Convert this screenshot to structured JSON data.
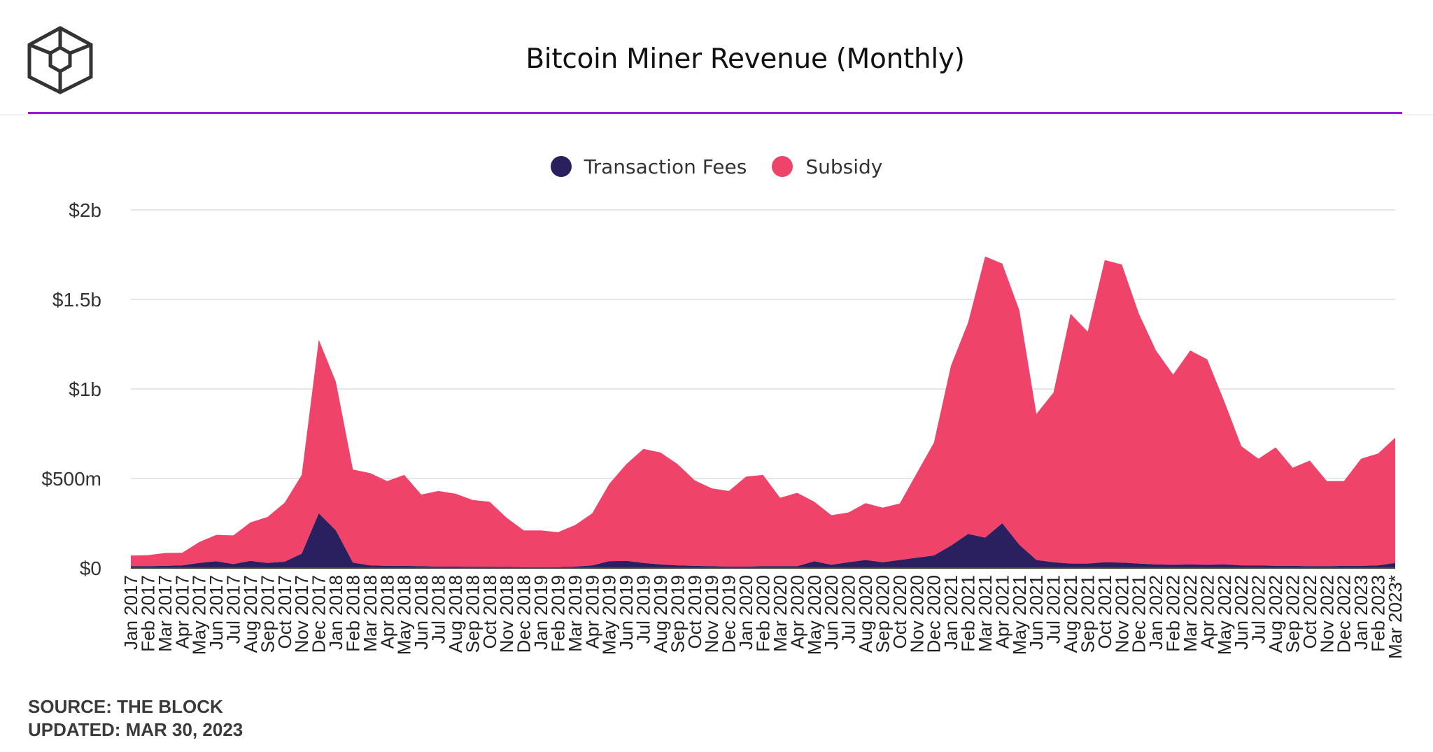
{
  "header": {
    "logo_icon": "cube-logo-icon",
    "title": "Bitcoin Miner Revenue (Monthly)",
    "accent_color": "#9b1bd1"
  },
  "legend": [
    {
      "name": "Transaction Fees",
      "color": "#2a2060"
    },
    {
      "name": "Subsidy",
      "color": "#f0436a"
    }
  ],
  "footer": {
    "source": "SOURCE: THE BLOCK",
    "updated": "UPDATED: MAR 30, 2023"
  },
  "chart_data": {
    "type": "area",
    "title": "Bitcoin Miner Revenue (Monthly)",
    "stacked": true,
    "legend_position": "top-center",
    "grid": true,
    "ylim": [
      0,
      2000000000
    ],
    "y_ticks": [
      {
        "value": 0,
        "label": "$0"
      },
      {
        "value": 500000000,
        "label": "$500m"
      },
      {
        "value": 1000000000,
        "label": "$1b"
      },
      {
        "value": 1500000000,
        "label": "$1.5b"
      },
      {
        "value": 2000000000,
        "label": "$2b"
      }
    ],
    "categories": [
      "Jan 2017",
      "Feb 2017",
      "Mar 2017",
      "Apr 2017",
      "May 2017",
      "Jun 2017",
      "Jul 2017",
      "Aug 2017",
      "Sep 2017",
      "Oct 2017",
      "Nov 2017",
      "Dec 2017",
      "Jan 2018",
      "Feb 2018",
      "Mar 2018",
      "Apr 2018",
      "May 2018",
      "Jun 2018",
      "Jul 2018",
      "Aug 2018",
      "Sep 2018",
      "Oct 2018",
      "Nov 2018",
      "Dec 2018",
      "Jan 2019",
      "Feb 2019",
      "Mar 2019",
      "Apr 2019",
      "May 2019",
      "Jun 2019",
      "Jul 2019",
      "Aug 2019",
      "Sep 2019",
      "Oct 2019",
      "Nov 2019",
      "Dec 2019",
      "Jan 2020",
      "Feb 2020",
      "Mar 2020",
      "Apr 2020",
      "May 2020",
      "Jun 2020",
      "Jul 2020",
      "Aug 2020",
      "Sep 2020",
      "Oct 2020",
      "Nov 2020",
      "Dec 2020",
      "Jan 2021",
      "Feb 2021",
      "Mar 2021",
      "Apr 2021",
      "May 2021",
      "Jun 2021",
      "Jul 2021",
      "Aug 2021",
      "Sep 2021",
      "Oct 2021",
      "Nov 2021",
      "Dec 2021",
      "Jan 2022",
      "Feb 2022",
      "Mar 2022",
      "Apr 2022",
      "May 2022",
      "Jun 2022",
      "Jul 2022",
      "Aug 2022",
      "Sep 2022",
      "Oct 2022",
      "Nov 2022",
      "Dec 2022",
      "Jan 2023",
      "Feb 2023",
      "Mar 2023*"
    ],
    "series": [
      {
        "name": "Transaction Fees",
        "color": "#2a2060",
        "values": [
          10000000,
          10000000,
          12000000,
          15000000,
          28000000,
          38000000,
          22000000,
          40000000,
          28000000,
          35000000,
          80000000,
          305000000,
          210000000,
          30000000,
          15000000,
          12000000,
          12000000,
          10000000,
          8000000,
          8000000,
          7000000,
          7000000,
          6000000,
          5000000,
          5000000,
          5000000,
          8000000,
          15000000,
          38000000,
          40000000,
          28000000,
          20000000,
          15000000,
          12000000,
          10000000,
          8000000,
          8000000,
          10000000,
          10000000,
          10000000,
          38000000,
          18000000,
          32000000,
          45000000,
          32000000,
          45000000,
          58000000,
          70000000,
          125000000,
          190000000,
          170000000,
          250000000,
          130000000,
          45000000,
          32000000,
          25000000,
          25000000,
          32000000,
          30000000,
          25000000,
          20000000,
          18000000,
          20000000,
          18000000,
          20000000,
          15000000,
          15000000,
          12000000,
          12000000,
          10000000,
          10000000,
          12000000,
          12000000,
          15000000,
          28000000
        ]
      },
      {
        "name": "Subsidy",
        "color": "#f0436a",
        "values": [
          60000000,
          62000000,
          72000000,
          70000000,
          117000000,
          147000000,
          160000000,
          215000000,
          257000000,
          330000000,
          440000000,
          970000000,
          830000000,
          520000000,
          515000000,
          473000000,
          508000000,
          400000000,
          422000000,
          407000000,
          373000000,
          363000000,
          274000000,
          205000000,
          205000000,
          195000000,
          232000000,
          290000000,
          432000000,
          540000000,
          637000000,
          625000000,
          565000000,
          478000000,
          435000000,
          422000000,
          502000000,
          510000000,
          382000000,
          410000000,
          332000000,
          277000000,
          278000000,
          317000000,
          305000000,
          315000000,
          472000000,
          630000000,
          1005000000,
          1180000000,
          1570000000,
          1450000000,
          1310000000,
          815000000,
          948000000,
          1395000000,
          1295000000,
          1688000000,
          1665000000,
          1395000000,
          1195000000,
          1062000000,
          1195000000,
          1147000000,
          910000000,
          665000000,
          595000000,
          662000000,
          548000000,
          590000000,
          475000000,
          473000000,
          598000000,
          625000000,
          700000000
        ]
      }
    ]
  }
}
